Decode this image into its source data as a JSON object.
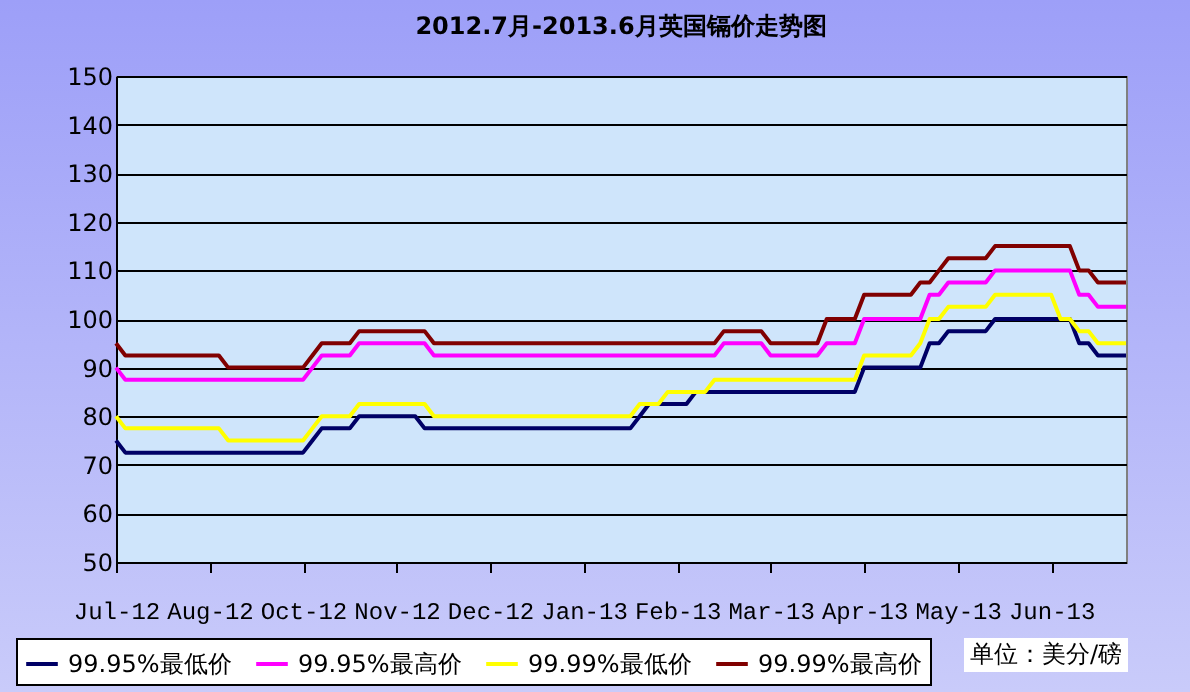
{
  "chart_data": {
    "type": "line",
    "title": "2012.7月-2013.6月英国镉价走势图",
    "categories": [
      "Jul-12",
      null,
      null,
      null,
      null,
      null,
      null,
      null,
      null,
      null,
      "Aug-12",
      null,
      null,
      null,
      null,
      null,
      null,
      null,
      null,
      null,
      "Oct-12",
      null,
      null,
      null,
      null,
      null,
      null,
      null,
      null,
      null,
      "Nov-12",
      null,
      null,
      null,
      null,
      null,
      null,
      null,
      null,
      null,
      "Dec-12",
      null,
      null,
      null,
      null,
      null,
      null,
      null,
      null,
      null,
      "Jan-13",
      null,
      null,
      null,
      null,
      null,
      null,
      null,
      null,
      null,
      "Feb-13",
      null,
      null,
      null,
      null,
      null,
      null,
      null,
      null,
      null,
      "Mar-13",
      null,
      null,
      null,
      null,
      null,
      null,
      null,
      null,
      null,
      "Apr-13",
      null,
      null,
      null,
      null,
      null,
      null,
      null,
      null,
      null,
      "May-13",
      null,
      null,
      null,
      null,
      null,
      null,
      null,
      null,
      null,
      "Jun-13",
      null,
      null,
      null,
      null,
      null,
      null,
      null,
      null
    ],
    "ylim": [
      50,
      150
    ],
    "yticks": [
      50,
      60,
      70,
      80,
      90,
      100,
      110,
      120,
      130,
      140,
      150
    ],
    "grid": "y",
    "legend": "bottom",
    "marker": "none",
    "line_style": "solid",
    "annotations": [
      "单位：美分/磅"
    ],
    "series": [
      {
        "name": "99.95%最低价",
        "color": "#000066",
        "values": [
          75,
          72.5,
          72.5,
          72.5,
          72.5,
          72.5,
          72.5,
          72.5,
          72.5,
          72.5,
          72.5,
          72.5,
          72.5,
          72.5,
          72.5,
          72.5,
          72.5,
          72.5,
          72.5,
          72.5,
          72.5,
          75,
          77.5,
          77.5,
          77.5,
          77.5,
          80,
          80,
          80,
          80,
          80,
          80,
          80,
          77.5,
          77.5,
          77.5,
          77.5,
          77.5,
          77.5,
          77.5,
          77.5,
          77.5,
          77.5,
          77.5,
          77.5,
          77.5,
          77.5,
          77.5,
          77.5,
          77.5,
          77.5,
          77.5,
          77.5,
          77.5,
          77.5,
          77.5,
          80,
          82.5,
          82.5,
          82.5,
          82.5,
          82.5,
          85,
          85,
          85,
          85,
          85,
          85,
          85,
          85,
          85,
          85,
          85,
          85,
          85,
          85,
          85,
          85,
          85,
          85,
          90,
          90,
          90,
          90,
          90,
          90,
          90,
          95,
          95,
          97.5,
          97.5,
          97.5,
          97.5,
          97.5,
          100,
          100,
          100,
          100,
          100,
          100,
          100,
          100,
          100,
          95,
          95,
          92.5,
          92.5,
          92.5,
          92.5
        ]
      },
      {
        "name": "99.95%最高价",
        "color": "#ff00ff",
        "values": [
          90,
          87.5,
          87.5,
          87.5,
          87.5,
          87.5,
          87.5,
          87.5,
          87.5,
          87.5,
          87.5,
          87.5,
          87.5,
          87.5,
          87.5,
          87.5,
          87.5,
          87.5,
          87.5,
          87.5,
          87.5,
          90,
          92.5,
          92.5,
          92.5,
          92.5,
          95,
          95,
          95,
          95,
          95,
          95,
          95,
          95,
          92.5,
          92.5,
          92.5,
          92.5,
          92.5,
          92.5,
          92.5,
          92.5,
          92.5,
          92.5,
          92.5,
          92.5,
          92.5,
          92.5,
          92.5,
          92.5,
          92.5,
          92.5,
          92.5,
          92.5,
          92.5,
          92.5,
          92.5,
          92.5,
          92.5,
          92.5,
          92.5,
          92.5,
          92.5,
          92.5,
          92.5,
          95,
          95,
          95,
          95,
          95,
          92.5,
          92.5,
          92.5,
          92.5,
          92.5,
          92.5,
          95,
          95,
          95,
          95,
          100,
          100,
          100,
          100,
          100,
          100,
          100,
          105,
          105,
          107.5,
          107.5,
          107.5,
          107.5,
          107.5,
          110,
          110,
          110,
          110,
          110,
          110,
          110,
          110,
          110,
          105,
          105,
          102.5,
          102.5,
          102.5,
          102.5
        ]
      },
      {
        "name": "99.99%最低价",
        "color": "#ffff00",
        "values": [
          80,
          77.5,
          77.5,
          77.5,
          77.5,
          77.5,
          77.5,
          77.5,
          77.5,
          77.5,
          77.5,
          77.5,
          75,
          75,
          75,
          75,
          75,
          75,
          75,
          75,
          75,
          77.5,
          80,
          80,
          80,
          80,
          82.5,
          82.5,
          82.5,
          82.5,
          82.5,
          82.5,
          82.5,
          82.5,
          80,
          80,
          80,
          80,
          80,
          80,
          80,
          80,
          80,
          80,
          80,
          80,
          80,
          80,
          80,
          80,
          80,
          80,
          80,
          80,
          80,
          80,
          82.5,
          82.5,
          82.5,
          85,
          85,
          85,
          85,
          85,
          87.5,
          87.5,
          87.5,
          87.5,
          87.5,
          87.5,
          87.5,
          87.5,
          87.5,
          87.5,
          87.5,
          87.5,
          87.5,
          87.5,
          87.5,
          87.5,
          92.5,
          92.5,
          92.5,
          92.5,
          92.5,
          92.5,
          95,
          100,
          100,
          102.5,
          102.5,
          102.5,
          102.5,
          102.5,
          105,
          105,
          105,
          105,
          105,
          105,
          105,
          100,
          100,
          97.5,
          97.5,
          95,
          95,
          95,
          95
        ]
      },
      {
        "name": "99.99%最高价",
        "color": "#800000",
        "values": [
          95,
          92.5,
          92.5,
          92.5,
          92.5,
          92.5,
          92.5,
          92.5,
          92.5,
          92.5,
          92.5,
          92.5,
          90,
          90,
          90,
          90,
          90,
          90,
          90,
          90,
          90,
          92.5,
          95,
          95,
          95,
          95,
          97.5,
          97.5,
          97.5,
          97.5,
          97.5,
          97.5,
          97.5,
          97.5,
          95,
          95,
          95,
          95,
          95,
          95,
          95,
          95,
          95,
          95,
          95,
          95,
          95,
          95,
          95,
          95,
          95,
          95,
          95,
          95,
          95,
          95,
          95,
          95,
          95,
          95,
          95,
          95,
          95,
          95,
          95,
          97.5,
          97.5,
          97.5,
          97.5,
          97.5,
          95,
          95,
          95,
          95,
          95,
          95,
          100,
          100,
          100,
          100,
          105,
          105,
          105,
          105,
          105,
          105,
          107.5,
          107.5,
          110,
          112.5,
          112.5,
          112.5,
          112.5,
          112.5,
          115,
          115,
          115,
          115,
          115,
          115,
          115,
          115,
          115,
          110,
          110,
          107.5,
          107.5,
          107.5,
          107.5
        ]
      }
    ]
  }
}
